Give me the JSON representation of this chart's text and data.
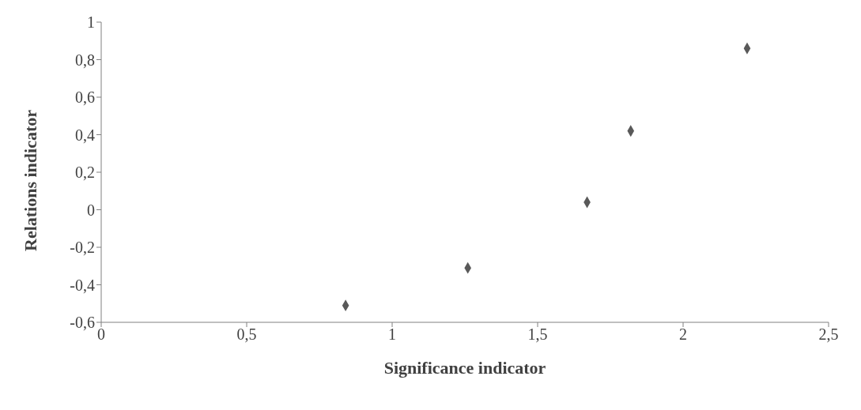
{
  "chart_data": {
    "type": "scatter",
    "xlabel": "Significance indicator",
    "ylabel": "Relations indicator",
    "x": [
      0.84,
      1.26,
      1.67,
      1.82,
      2.22
    ],
    "series": [
      {
        "color": "#595959",
        "values": [
          -0.51,
          -0.31,
          0.04,
          0.42,
          0.86
        ]
      }
    ],
    "marker": "diamond",
    "grid": false,
    "xlim": [
      0,
      2.5
    ],
    "xticks": [
      0,
      {
        "value": 0.5,
        "label": "0,5"
      },
      1,
      {
        "value": 1.5,
        "label": "1,5"
      },
      2,
      {
        "value": 2.5,
        "label": "2,5"
      }
    ],
    "ylim": [
      -0.6,
      1
    ],
    "yticks": [
      {
        "value": -0.6,
        "label": "-0,6"
      },
      {
        "value": -0.4,
        "label": "-0,4"
      },
      {
        "value": -0.2,
        "label": "-0,2"
      },
      0,
      {
        "value": 0.2,
        "label": "0,2"
      },
      {
        "value": 0.4,
        "label": "0,4"
      },
      {
        "value": 0.6,
        "label": "0,6"
      },
      {
        "value": 0.8,
        "label": "0,8"
      },
      1
    ]
  }
}
